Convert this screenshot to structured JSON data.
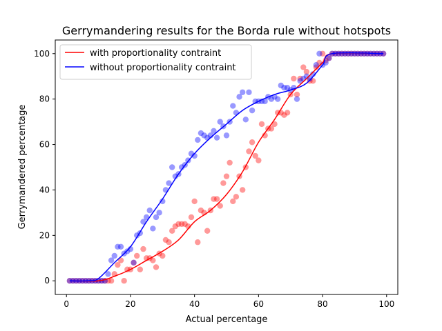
{
  "chart_data": {
    "type": "scatter",
    "title": "Gerrymandering results for the Borda rule without hotspots",
    "xlabel": "Actual percentage",
    "ylabel": "Gerrymandered percentage",
    "xlim": [
      -3.5,
      103.5
    ],
    "ylim": [
      -6,
      106
    ],
    "xticks": [
      0,
      20,
      40,
      60,
      80,
      100
    ],
    "yticks": [
      0,
      20,
      40,
      60,
      80,
      100
    ],
    "xtick_labels": [
      "0",
      "20",
      "40",
      "60",
      "80",
      "100"
    ],
    "ytick_labels": [
      "0",
      "20",
      "40",
      "60",
      "80",
      "100"
    ],
    "grid": false,
    "legend": {
      "position": "upper-left",
      "entries": [
        {
          "label": "with proportionality contraint",
          "color": "#ff0000"
        },
        {
          "label": "without proportionality contraint",
          "color": "#0000ff"
        }
      ]
    },
    "series": [
      {
        "name": "with proportionality contraint",
        "color": "#ff0000",
        "points": [
          [
            1,
            0
          ],
          [
            2,
            0
          ],
          [
            3,
            0
          ],
          [
            4,
            0
          ],
          [
            5,
            0
          ],
          [
            6,
            0
          ],
          [
            7,
            0
          ],
          [
            8,
            0
          ],
          [
            9,
            0
          ],
          [
            10,
            0
          ],
          [
            11,
            0
          ],
          [
            12,
            0
          ],
          [
            13,
            0
          ],
          [
            14,
            0
          ],
          [
            15,
            3
          ],
          [
            16,
            7
          ],
          [
            17,
            9
          ],
          [
            18,
            0
          ],
          [
            19,
            5
          ],
          [
            20,
            5
          ],
          [
            21,
            8
          ],
          [
            22,
            11
          ],
          [
            23,
            5
          ],
          [
            24,
            14
          ],
          [
            25,
            10
          ],
          [
            26,
            10
          ],
          [
            27,
            9
          ],
          [
            28,
            6
          ],
          [
            29,
            12
          ],
          [
            30,
            11
          ],
          [
            31,
            18
          ],
          [
            32,
            17
          ],
          [
            33,
            22
          ],
          [
            34,
            24
          ],
          [
            35,
            25
          ],
          [
            36,
            25
          ],
          [
            37,
            25
          ],
          [
            38,
            24
          ],
          [
            39,
            28
          ],
          [
            40,
            35
          ],
          [
            41,
            17
          ],
          [
            42,
            31
          ],
          [
            43,
            30
          ],
          [
            44,
            22
          ],
          [
            45,
            31
          ],
          [
            46,
            36
          ],
          [
            47,
            36
          ],
          [
            48,
            33
          ],
          [
            49,
            43
          ],
          [
            50,
            46
          ],
          [
            51,
            52
          ],
          [
            52,
            35
          ],
          [
            53,
            37
          ],
          [
            54,
            46
          ],
          [
            55,
            40
          ],
          [
            56,
            50
          ],
          [
            57,
            57
          ],
          [
            58,
            61
          ],
          [
            59,
            55
          ],
          [
            60,
            53
          ],
          [
            61,
            69
          ],
          [
            62,
            64
          ],
          [
            63,
            67
          ],
          [
            64,
            67
          ],
          [
            65,
            69
          ],
          [
            66,
            74
          ],
          [
            67,
            74
          ],
          [
            68,
            73
          ],
          [
            69,
            74
          ],
          [
            70,
            82
          ],
          [
            71,
            89
          ],
          [
            72,
            82
          ],
          [
            73,
            89
          ],
          [
            74,
            94
          ],
          [
            75,
            92
          ],
          [
            76,
            88
          ],
          [
            77,
            88
          ],
          [
            78,
            94
          ],
          [
            79,
            96
          ],
          [
            80,
            100
          ],
          [
            81,
            97
          ],
          [
            82,
            98
          ],
          [
            83,
            100
          ],
          [
            84,
            100
          ],
          [
            85,
            100
          ],
          [
            86,
            100
          ],
          [
            87,
            100
          ],
          [
            88,
            100
          ],
          [
            89,
            100
          ],
          [
            90,
            100
          ],
          [
            91,
            100
          ],
          [
            92,
            100
          ],
          [
            93,
            100
          ],
          [
            94,
            100
          ],
          [
            95,
            100
          ],
          [
            96,
            100
          ],
          [
            97,
            100
          ],
          [
            98,
            100
          ],
          [
            99,
            100
          ]
        ],
        "fit": [
          [
            1,
            0
          ],
          [
            10,
            0
          ],
          [
            15,
            2
          ],
          [
            20,
            5
          ],
          [
            25,
            9
          ],
          [
            30,
            13
          ],
          [
            35,
            18
          ],
          [
            40,
            26
          ],
          [
            45,
            31
          ],
          [
            50,
            38
          ],
          [
            55,
            48
          ],
          [
            60,
            61
          ],
          [
            65,
            71
          ],
          [
            70,
            82
          ],
          [
            75,
            89
          ],
          [
            80,
            96
          ],
          [
            83,
            100
          ],
          [
            99,
            100
          ]
        ]
      },
      {
        "name": "without proportionality contraint",
        "color": "#0000ff",
        "points": [
          [
            1,
            0
          ],
          [
            2,
            0
          ],
          [
            3,
            0
          ],
          [
            4,
            0
          ],
          [
            5,
            0
          ],
          [
            6,
            0
          ],
          [
            7,
            0
          ],
          [
            8,
            0
          ],
          [
            9,
            0
          ],
          [
            10,
            0
          ],
          [
            11,
            0
          ],
          [
            12,
            0
          ],
          [
            13,
            3
          ],
          [
            14,
            9
          ],
          [
            15,
            11
          ],
          [
            16,
            15
          ],
          [
            17,
            15
          ],
          [
            18,
            12
          ],
          [
            19,
            13
          ],
          [
            20,
            14
          ],
          [
            21,
            8
          ],
          [
            22,
            20
          ],
          [
            23,
            21
          ],
          [
            24,
            26
          ],
          [
            25,
            28
          ],
          [
            26,
            31
          ],
          [
            27,
            23
          ],
          [
            28,
            28
          ],
          [
            29,
            30
          ],
          [
            30,
            35
          ],
          [
            31,
            40
          ],
          [
            32,
            43
          ],
          [
            33,
            50
          ],
          [
            34,
            46
          ],
          [
            35,
            47
          ],
          [
            36,
            50
          ],
          [
            37,
            51
          ],
          [
            38,
            53
          ],
          [
            39,
            56
          ],
          [
            40,
            55
          ],
          [
            41,
            62
          ],
          [
            42,
            65
          ],
          [
            43,
            64
          ],
          [
            44,
            63
          ],
          [
            45,
            64
          ],
          [
            46,
            66
          ],
          [
            47,
            63
          ],
          [
            48,
            70
          ],
          [
            49,
            68
          ],
          [
            50,
            64
          ],
          [
            51,
            70
          ],
          [
            52,
            77
          ],
          [
            53,
            74
          ],
          [
            54,
            81
          ],
          [
            55,
            83
          ],
          [
            56,
            71
          ],
          [
            57,
            83
          ],
          [
            58,
            75
          ],
          [
            59,
            79
          ],
          [
            60,
            79
          ],
          [
            61,
            79
          ],
          [
            62,
            79
          ],
          [
            63,
            81
          ],
          [
            64,
            80
          ],
          [
            65,
            81
          ],
          [
            66,
            80
          ],
          [
            67,
            86
          ],
          [
            68,
            85
          ],
          [
            69,
            85
          ],
          [
            70,
            84
          ],
          [
            71,
            85
          ],
          [
            72,
            80
          ],
          [
            73,
            88
          ],
          [
            74,
            89
          ],
          [
            75,
            90
          ],
          [
            76,
            89
          ],
          [
            77,
            91
          ],
          [
            78,
            95
          ],
          [
            79,
            100
          ],
          [
            80,
            95
          ],
          [
            81,
            96
          ],
          [
            82,
            98
          ],
          [
            83,
            100
          ],
          [
            84,
            100
          ],
          [
            85,
            100
          ],
          [
            86,
            100
          ],
          [
            87,
            100
          ],
          [
            88,
            100
          ],
          [
            89,
            100
          ],
          [
            90,
            100
          ],
          [
            91,
            100
          ],
          [
            92,
            100
          ],
          [
            93,
            100
          ],
          [
            94,
            100
          ],
          [
            95,
            100
          ],
          [
            96,
            100
          ],
          [
            97,
            100
          ],
          [
            98,
            100
          ],
          [
            99,
            100
          ]
        ],
        "fit": [
          [
            1,
            0
          ],
          [
            7,
            0
          ],
          [
            10,
            1
          ],
          [
            15,
            8
          ],
          [
            20,
            15
          ],
          [
            25,
            26
          ],
          [
            30,
            36
          ],
          [
            35,
            47
          ],
          [
            40,
            56
          ],
          [
            45,
            63
          ],
          [
            50,
            69
          ],
          [
            55,
            75
          ],
          [
            60,
            79
          ],
          [
            65,
            82
          ],
          [
            70,
            84
          ],
          [
            75,
            87
          ],
          [
            80,
            95
          ],
          [
            83,
            100
          ],
          [
            99,
            100
          ]
        ]
      }
    ]
  }
}
